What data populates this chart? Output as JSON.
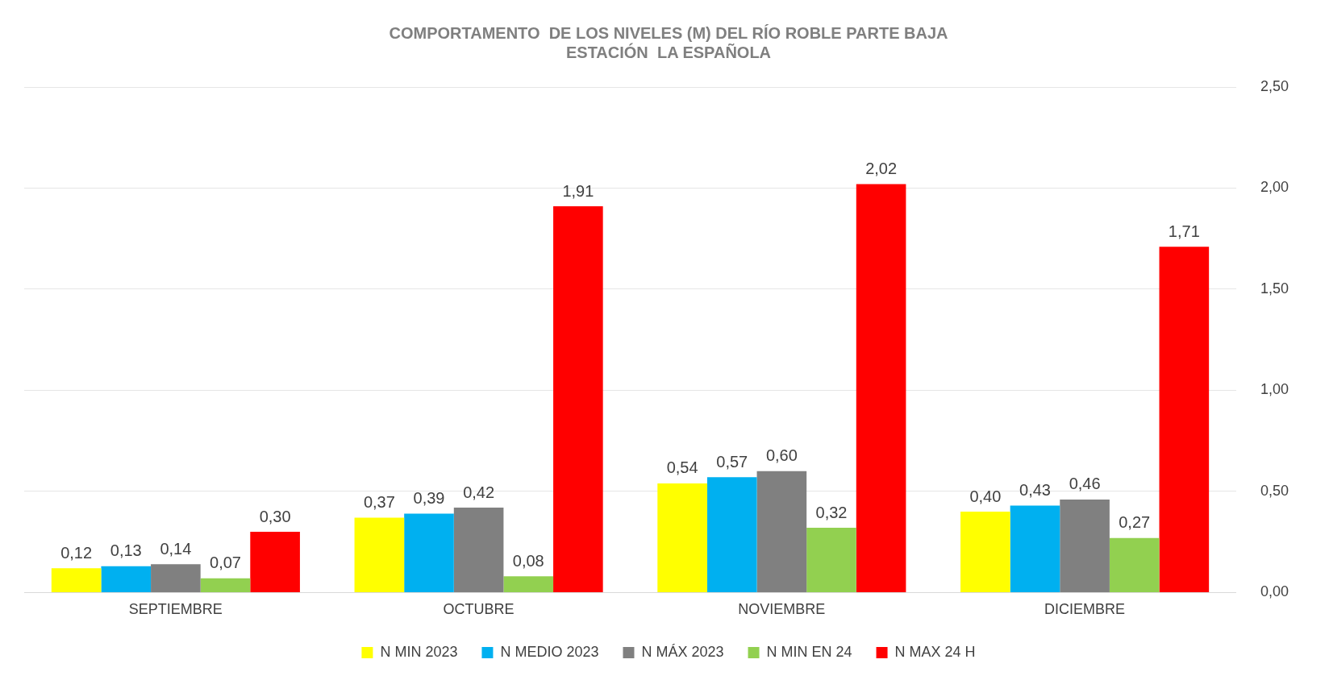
{
  "chart_data": {
    "type": "bar",
    "title": [
      "COMPORTAMENTO  DE LOS NIVELES (M) DEL RÍO ROBLE PARTE BAJA",
      "ESTACIÓN  LA ESPAÑOLA"
    ],
    "categories": [
      "SEPTIEMBRE",
      "OCTUBRE",
      "NOVIEMBRE",
      "DICIEMBRE"
    ],
    "series": [
      {
        "name": "N MIN 2023",
        "color": "#ffff00",
        "values": [
          0.12,
          0.37,
          0.54,
          0.4
        ],
        "value_labels": [
          "0,12",
          "0,37",
          "0,54",
          "0,40"
        ]
      },
      {
        "name": "N MEDIO 2023",
        "color": "#00b0f0",
        "values": [
          0.13,
          0.39,
          0.57,
          0.43
        ],
        "value_labels": [
          "0,13",
          "0,39",
          "0,57",
          "0,43"
        ]
      },
      {
        "name": "N MÁX 2023",
        "color": "#808080",
        "values": [
          0.14,
          0.42,
          0.6,
          0.46
        ],
        "value_labels": [
          "0,14",
          "0,42",
          "0,60",
          "0,46"
        ]
      },
      {
        "name": "N MIN EN 24",
        "color": "#92d050",
        "values": [
          0.07,
          0.08,
          0.32,
          0.27
        ],
        "value_labels": [
          "0,07",
          "0,08",
          "0,32",
          "0,27"
        ]
      },
      {
        "name": "N MAX 24 H",
        "color": "#ff0000",
        "values": [
          0.3,
          1.91,
          2.02,
          1.71
        ],
        "value_labels": [
          "0,30",
          "1,91",
          "2,02",
          "1,71"
        ]
      }
    ],
    "ylim": [
      0,
      2.5
    ],
    "yticks": [
      {
        "value": 0,
        "label": "0,00"
      },
      {
        "value": 0.5,
        "label": "0,50"
      },
      {
        "value": 1,
        "label": "1,00"
      },
      {
        "value": 1.5,
        "label": "1,50"
      },
      {
        "value": 2,
        "label": "2,00"
      },
      {
        "value": 2.5,
        "label": "2,50"
      }
    ],
    "grid": "y",
    "legend": "bottom"
  }
}
